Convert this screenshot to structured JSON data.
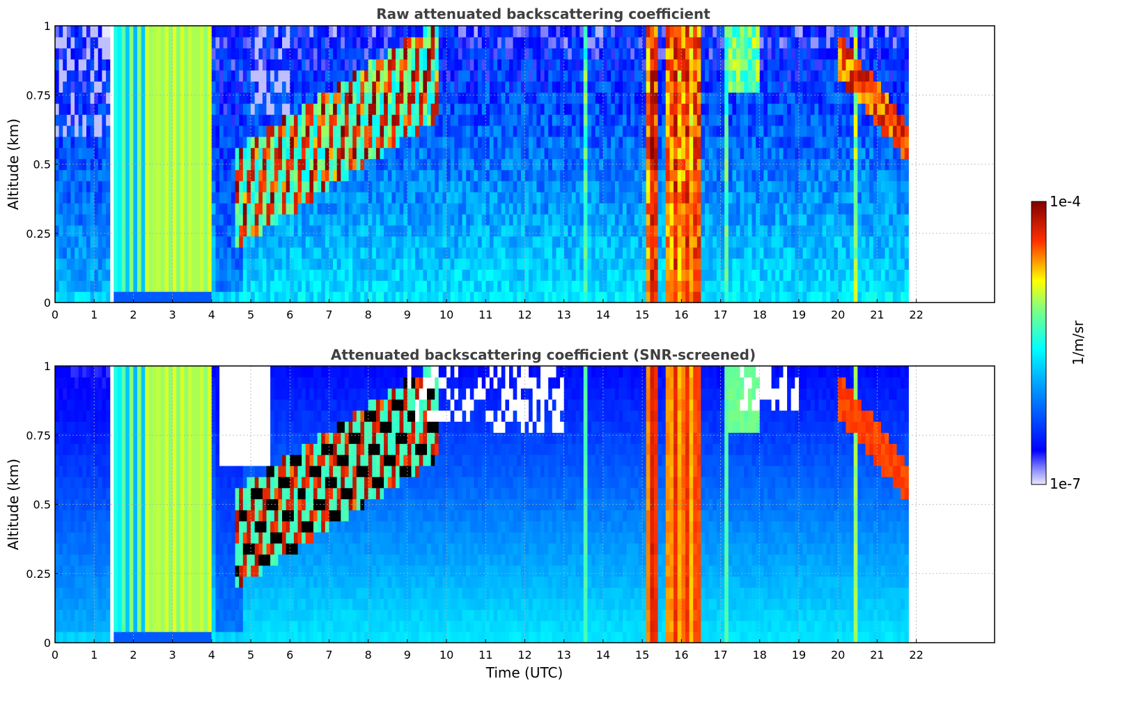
{
  "chart_data": [
    {
      "type": "heatmap",
      "title": "Raw attenuated backscattering coefficient",
      "xlabel": "",
      "ylabel": "Altitude (km)",
      "xlim": [
        0,
        24
      ],
      "ylim": [
        0,
        1
      ],
      "xticks": [
        "0",
        "1",
        "2",
        "3",
        "4",
        "5",
        "6",
        "7",
        "8",
        "9",
        "10",
        "11",
        "12",
        "13",
        "14",
        "15",
        "16",
        "17",
        "18",
        "19",
        "20",
        "21",
        "22"
      ],
      "yticks": [
        "0",
        "0.25",
        "0.5",
        "0.75",
        "1"
      ],
      "data_extent_hours": [
        0,
        21.8
      ],
      "gap_hours": [
        1.45,
        1.55
      ],
      "grid": true,
      "screened": false
    },
    {
      "type": "heatmap",
      "title": "Attenuated backscattering coefficient (SNR-screened)",
      "xlabel": "Time (UTC)",
      "ylabel": "Altitude (km)",
      "xlim": [
        0,
        24
      ],
      "ylim": [
        0,
        1
      ],
      "xticks": [
        "0",
        "1",
        "2",
        "3",
        "4",
        "5",
        "6",
        "7",
        "8",
        "9",
        "10",
        "11",
        "12",
        "13",
        "14",
        "15",
        "16",
        "17",
        "18",
        "19",
        "20",
        "21",
        "22"
      ],
      "yticks": [
        "0",
        "0.25",
        "0.5",
        "0.75",
        "1"
      ],
      "data_extent_hours": [
        0,
        21.8
      ],
      "gap_hours": [
        1.45,
        1.55
      ],
      "grid": true,
      "screened": true
    }
  ],
  "colorbar": {
    "label": "1/m/sr",
    "max_label": "1e-4",
    "min_label": "1e-7",
    "colormap": "jet"
  }
}
